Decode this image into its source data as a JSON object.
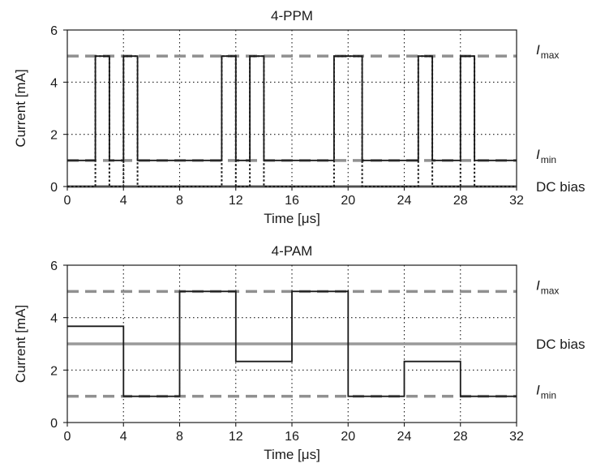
{
  "chart_data": [
    {
      "type": "line",
      "title": "4-PPM",
      "xlabel": "Time [μs]",
      "ylabel": "Current [mA]",
      "xlim": [
        0,
        32
      ],
      "ylim": [
        0,
        6
      ],
      "xticks": [
        0,
        4,
        8,
        12,
        16,
        20,
        24,
        28,
        32
      ],
      "yticks": [
        0,
        2,
        4,
        6
      ],
      "grid": true,
      "reference_lines": [
        {
          "y": 5,
          "label": "I",
          "sub": "max",
          "style": "dashed",
          "color": "#909090"
        },
        {
          "y": 1,
          "label": "I",
          "sub": "min",
          "style": "dashed",
          "color": "#909090"
        },
        {
          "y": 0,
          "label": "DC bias",
          "sub": "",
          "style": "solid",
          "color": "#9a9a9a"
        }
      ],
      "series": [
        {
          "style": "solid",
          "points": [
            [
              0,
              1
            ],
            [
              2,
              1
            ],
            [
              2,
              5
            ],
            [
              3,
              5
            ],
            [
              3,
              1
            ],
            [
              4,
              1
            ],
            [
              4,
              5
            ],
            [
              5,
              5
            ],
            [
              5,
              1
            ],
            [
              11,
              1
            ],
            [
              11,
              5
            ],
            [
              12,
              5
            ],
            [
              12,
              1
            ],
            [
              13,
              1
            ],
            [
              13,
              5
            ],
            [
              14,
              5
            ],
            [
              14,
              1
            ],
            [
              19,
              1
            ],
            [
              19,
              5
            ],
            [
              21,
              5
            ],
            [
              21,
              1
            ],
            [
              25,
              1
            ],
            [
              25,
              5
            ],
            [
              26,
              5
            ],
            [
              26,
              1
            ],
            [
              28,
              1
            ],
            [
              28,
              5
            ],
            [
              29,
              5
            ],
            [
              29,
              1
            ],
            [
              32,
              1
            ]
          ]
        },
        {
          "style": "dotted",
          "points": [
            [
              0,
              0
            ],
            [
              2,
              0
            ],
            [
              2,
              5
            ],
            [
              3,
              5
            ],
            [
              3,
              0
            ],
            [
              4,
              0
            ],
            [
              4,
              5
            ],
            [
              5,
              5
            ],
            [
              5,
              0
            ],
            [
              11,
              0
            ],
            [
              11,
              5
            ],
            [
              12,
              5
            ],
            [
              12,
              0
            ],
            [
              13,
              0
            ],
            [
              13,
              5
            ],
            [
              14,
              5
            ],
            [
              14,
              0
            ],
            [
              19,
              0
            ],
            [
              19,
              5
            ],
            [
              21,
              5
            ],
            [
              21,
              0
            ],
            [
              25,
              0
            ],
            [
              25,
              5
            ],
            [
              26,
              5
            ],
            [
              26,
              0
            ],
            [
              28,
              0
            ],
            [
              28,
              5
            ],
            [
              29,
              5
            ],
            [
              29,
              0
            ],
            [
              32,
              0
            ]
          ]
        }
      ]
    },
    {
      "type": "line",
      "title": "4-PAM",
      "xlabel": "Time [μs]",
      "ylabel": "Current [mA]",
      "xlim": [
        0,
        32
      ],
      "ylim": [
        0,
        6
      ],
      "xticks": [
        0,
        4,
        8,
        12,
        16,
        20,
        24,
        28,
        32
      ],
      "yticks": [
        0,
        2,
        4,
        6
      ],
      "grid": true,
      "reference_lines": [
        {
          "y": 5,
          "label": "I",
          "sub": "max",
          "style": "dashed",
          "color": "#909090"
        },
        {
          "y": 3,
          "label": "DC bias",
          "sub": "",
          "style": "solid",
          "color": "#9a9a9a"
        },
        {
          "y": 1,
          "label": "I",
          "sub": "min",
          "style": "dashed",
          "color": "#909090"
        }
      ],
      "series": [
        {
          "style": "solid",
          "points": [
            [
              0,
              3.67
            ],
            [
              4,
              3.67
            ],
            [
              4,
              1
            ],
            [
              8,
              1
            ],
            [
              8,
              5
            ],
            [
              12,
              5
            ],
            [
              12,
              2.33
            ],
            [
              16,
              2.33
            ],
            [
              16,
              5
            ],
            [
              20,
              5
            ],
            [
              20,
              1
            ],
            [
              24,
              1
            ],
            [
              24,
              2.33
            ],
            [
              28,
              2.33
            ],
            [
              28,
              1
            ],
            [
              32,
              1
            ]
          ]
        }
      ]
    }
  ]
}
